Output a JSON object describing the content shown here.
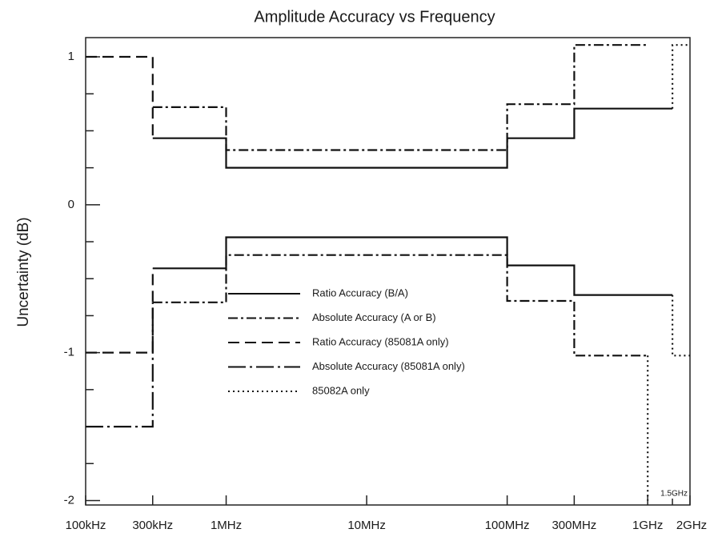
{
  "chart_data": {
    "type": "line",
    "title": "Amplitude Accuracy vs Frequency",
    "y_label": "Uncertainty (dB)",
    "xscale": "log",
    "xlim": [
      100000,
      2000000000
    ],
    "ylim": [
      -2.03,
      1.13
    ],
    "xticks": [
      {
        "value": 100000,
        "label": "100kHz"
      },
      {
        "value": 300000,
        "label": "300kHz"
      },
      {
        "value": 1000000,
        "label": "1MHz"
      },
      {
        "value": 10000000,
        "label": "10MHz"
      },
      {
        "value": 100000000,
        "label": "100MHz"
      },
      {
        "value": 300000000,
        "label": "300MHz"
      },
      {
        "value": 1000000000,
        "label": "1GHz"
      },
      {
        "value": 1500000000,
        "label": "1.5GHz"
      },
      {
        "value": 2000000000,
        "label": "2GHz"
      }
    ],
    "yticks": [
      -2,
      -1,
      0,
      1
    ],
    "yminorticks": [
      -1.75,
      -1.5,
      -1.25,
      -0.75,
      -0.5,
      -0.25,
      0.25,
      0.5,
      0.75
    ],
    "series": [
      {
        "name": "Ratio Accuracy (B/A)",
        "color": "#111111",
        "style": "solid",
        "x": [
          300000,
          1000000,
          1000000,
          100000000,
          100000000,
          300000000,
          300000000,
          1500000000,
          null,
          300000,
          1000000,
          1000000,
          100000000,
          100000000,
          300000000,
          300000000,
          1500000000
        ],
        "values": [
          0.45,
          0.45,
          0.25,
          0.25,
          0.45,
          0.45,
          0.65,
          0.65,
          null,
          -0.43,
          -0.43,
          -0.22,
          -0.22,
          -0.41,
          -0.41,
          -0.61,
          -0.61
        ]
      },
      {
        "name": "Absolute Accuracy (A or B)",
        "color": "#111111",
        "style": "dash-dot",
        "x": [
          300000,
          1000000,
          1000000,
          100000000,
          100000000,
          300000000,
          300000000,
          1000000000,
          null,
          300000,
          1000000,
          1000000,
          100000000,
          100000000,
          300000000,
          300000000,
          1000000000
        ],
        "values": [
          0.66,
          0.66,
          0.37,
          0.37,
          0.68,
          0.68,
          1.08,
          1.08,
          null,
          -0.66,
          -0.66,
          -0.34,
          -0.34,
          -0.65,
          -0.65,
          -1.02,
          -1.02
        ]
      },
      {
        "name": "Ratio Accuracy (85081A only)",
        "color": "#111111",
        "style": "dashed",
        "x": [
          100000,
          300000,
          300000,
          null,
          100000,
          300000,
          300000
        ],
        "values": [
          1.0,
          1.0,
          0.45,
          null,
          -1.0,
          -1.0,
          -0.43
        ]
      },
      {
        "name": "Absolute Accuracy (85081A only)",
        "color": "#111111",
        "style": "long-dash-dot",
        "x": [
          100000,
          300000,
          300000
        ],
        "values": [
          -1.5,
          -1.5,
          -0.66
        ]
      },
      {
        "name": "85082A only",
        "color": "#111111",
        "style": "dotted",
        "x": [
          1500000000,
          1500000000,
          2000000000,
          null,
          1500000000,
          1500000000,
          2000000000,
          null,
          1000000000,
          1000000000
        ],
        "values": [
          0.65,
          1.08,
          1.08,
          null,
          -0.61,
          -1.02,
          -1.02,
          null,
          -1.02,
          -2.0
        ]
      }
    ]
  }
}
